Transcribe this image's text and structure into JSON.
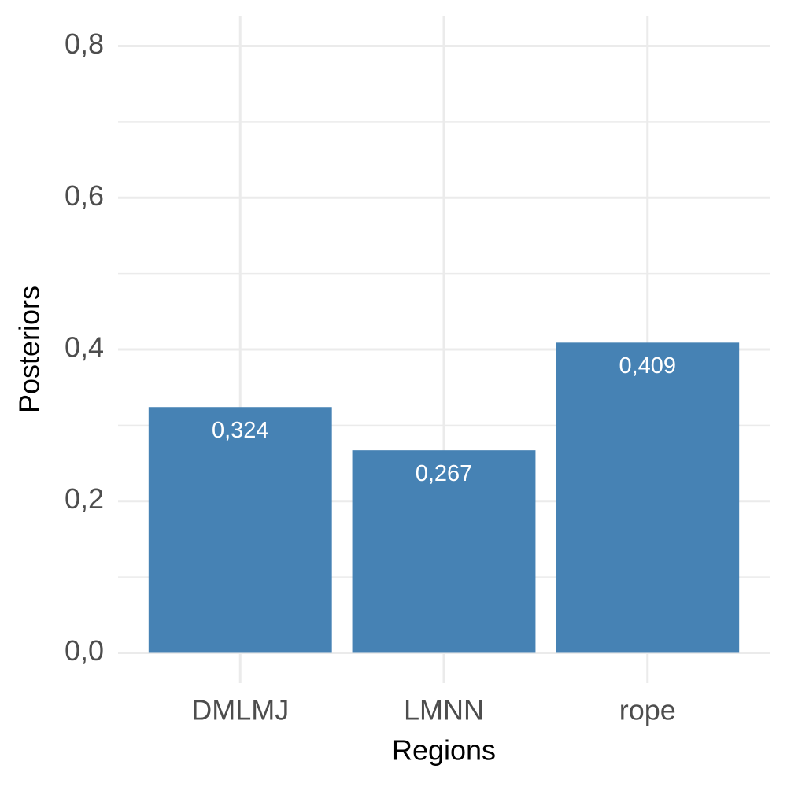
{
  "chart_data": {
    "type": "bar",
    "x_label": "Regions",
    "y_label": "Posteriors",
    "categories": [
      "DMLMJ",
      "LMNN",
      "rope"
    ],
    "values": [
      0.324,
      0.267,
      0.409
    ],
    "value_labels": [
      "0,324",
      "0,267",
      "0,409"
    ],
    "color": "#4682b4",
    "ylim": [
      -0.04,
      0.84
    ],
    "yticks": [
      {
        "value": 0,
        "label": "0,0"
      },
      {
        "value": 0.2,
        "label": "0,2"
      },
      {
        "value": 0.4,
        "label": "0,4"
      },
      {
        "value": 0.6,
        "label": "0,6"
      },
      {
        "value": 0.8,
        "label": "0,8"
      }
    ],
    "y_minor_ticks": [
      0.1,
      0.3,
      0.5,
      0.7
    ],
    "grid": true
  }
}
